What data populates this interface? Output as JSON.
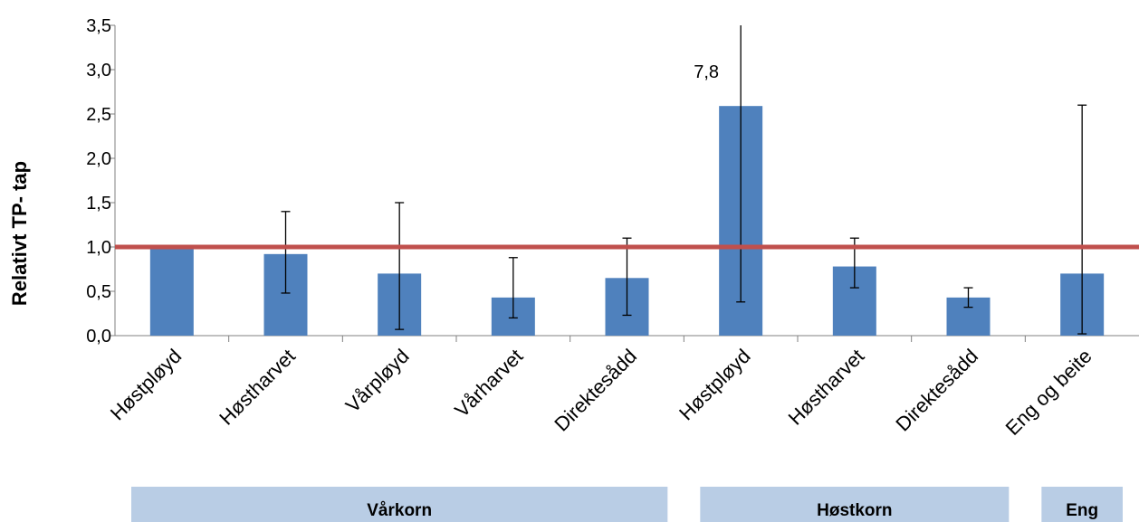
{
  "chart_data": {
    "type": "bar",
    "title": "",
    "xlabel": "",
    "ylabel": "Relativt TP- tap",
    "ylim": [
      0,
      3.5
    ],
    "yticks": [
      "0,0",
      "0,5",
      "1,0",
      "1,5",
      "2,0",
      "2,5",
      "3,0",
      "3,5"
    ],
    "grid": false,
    "categories": [
      "Høstpløyd",
      "Høstharvet",
      "Vårpløyd",
      "Vårharvet",
      "Direktesådd",
      "Høstpløyd",
      "Høstharvet",
      "Direktesådd",
      "Eng og beite"
    ],
    "values": [
      1.0,
      0.92,
      0.7,
      0.43,
      0.65,
      2.59,
      0.78,
      0.43,
      0.7
    ],
    "error_low": [
      null,
      0.48,
      0.07,
      0.2,
      0.23,
      0.38,
      0.54,
      0.32,
      0.02
    ],
    "error_high": [
      null,
      1.4,
      1.5,
      0.88,
      1.1,
      7.8,
      1.1,
      0.54,
      2.6
    ],
    "annotations": [
      {
        "category_index": 5,
        "text": "7,8"
      }
    ],
    "reference_line": {
      "y": 1.0,
      "color": "#c0504d"
    },
    "bar_color": "#4f81bd",
    "groups": [
      {
        "label": "Vårkorn",
        "from": 0,
        "to": 4
      },
      {
        "label": "Høstkorn",
        "from": 5,
        "to": 7
      },
      {
        "label": "Eng",
        "from": 8,
        "to": 8
      }
    ],
    "group_band_color": "#b9cde5"
  }
}
